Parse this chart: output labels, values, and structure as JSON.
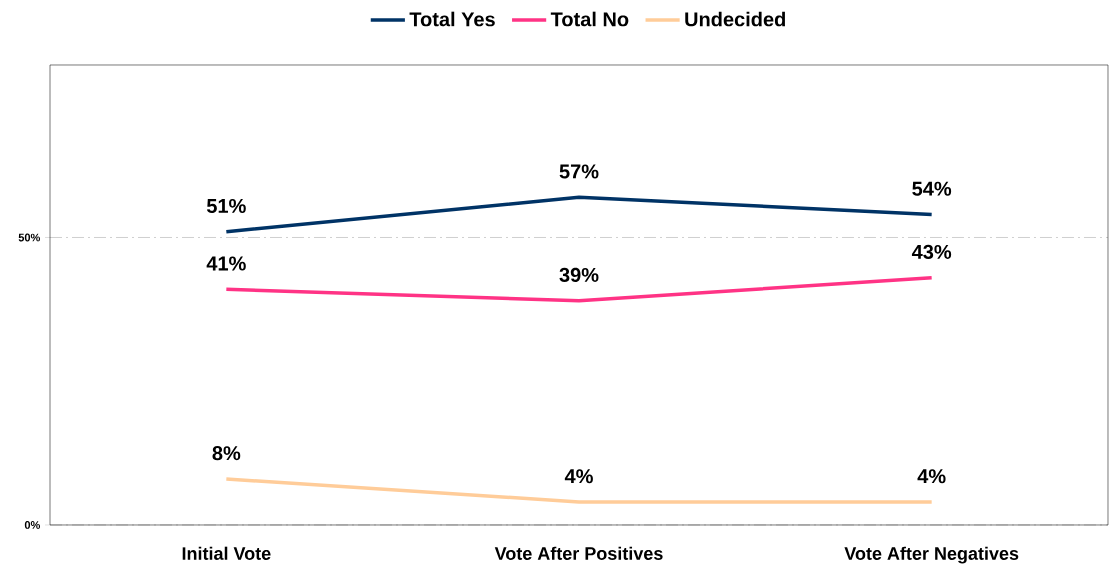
{
  "chart_data": {
    "type": "line",
    "categories": [
      "Initial Vote",
      "Vote After Positives",
      "Vote After Negatives"
    ],
    "series": [
      {
        "name": "Total Yes",
        "color": "#003366",
        "values": [
          51,
          57,
          54
        ],
        "value_labels": [
          "51%",
          "57%",
          "54%"
        ]
      },
      {
        "name": "Total No",
        "color": "#ff3385",
        "values": [
          41,
          39,
          43
        ],
        "value_labels": [
          "41%",
          "39%",
          "43%"
        ]
      },
      {
        "name": "Undecided",
        "color": "#ffcc99",
        "values": [
          8,
          4,
          4
        ],
        "value_labels": [
          "8%",
          "4%",
          "4%"
        ]
      }
    ],
    "ylim": [
      0,
      80
    ],
    "yticks": [
      {
        "value": 0,
        "label": "0%"
      },
      {
        "value": 50,
        "label": "50%"
      }
    ],
    "grid": "y",
    "legend": "top",
    "marker": "none",
    "line_style": "solid"
  }
}
